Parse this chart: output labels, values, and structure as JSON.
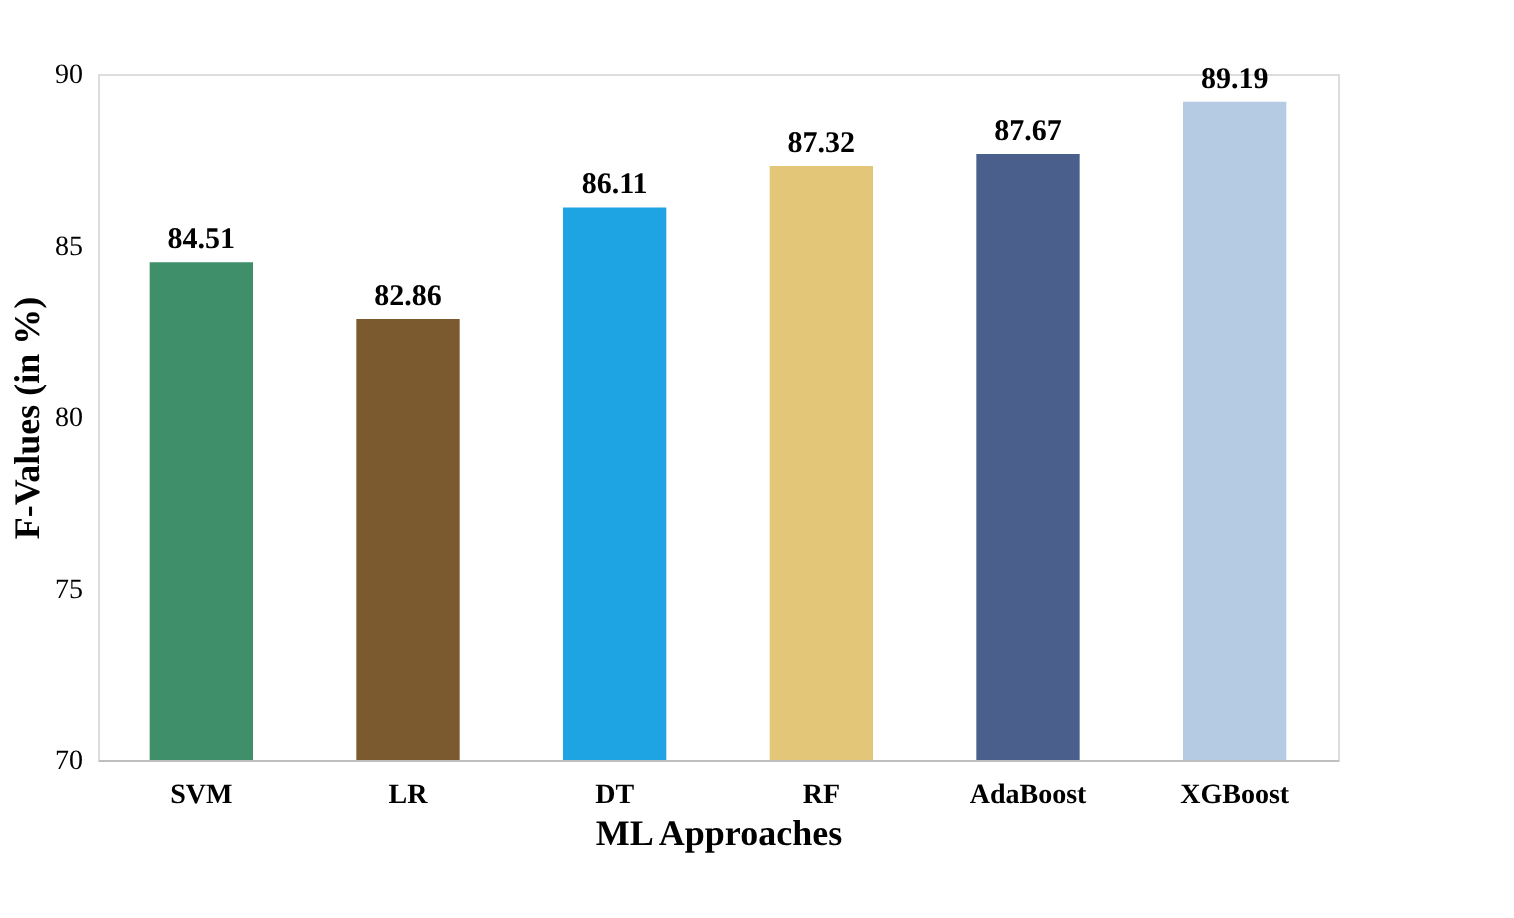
{
  "chart_data": {
    "type": "bar",
    "xlabel": "ML Approaches",
    "ylabel": "F-Values (in %)",
    "categories": [
      "SVM",
      "LR",
      "DT",
      "RF",
      "AdaBoost",
      "XGBoost"
    ],
    "values": [
      84.51,
      82.86,
      86.11,
      87.32,
      87.67,
      89.19
    ],
    "colors": [
      "#3f8f6a",
      "#7a5a2e",
      "#1ea3e3",
      "#e3c678",
      "#4a5f8c",
      "#b4cbe3"
    ],
    "ylim": [
      70,
      90
    ],
    "yticks": [
      70,
      75,
      80,
      85,
      90
    ],
    "data_labels": true,
    "grid": false
  }
}
